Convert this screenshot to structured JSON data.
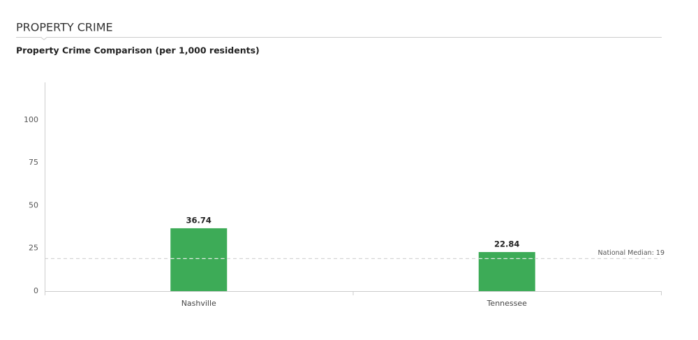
{
  "header": {
    "title": "PROPERTY CRIME"
  },
  "chart_data": {
    "type": "bar",
    "title": "Property Crime Comparison (per 1,000 residents)",
    "categories": [
      "Nashville",
      "Tennessee"
    ],
    "values": [
      36.74,
      22.84
    ],
    "color": "#3dab57",
    "ylim": [
      0,
      122
    ],
    "yticks": [
      0,
      25,
      50,
      75,
      100
    ],
    "grid": false,
    "reference_line": {
      "value": 19,
      "label": "National Median: 19",
      "color": "#cccccc"
    }
  }
}
